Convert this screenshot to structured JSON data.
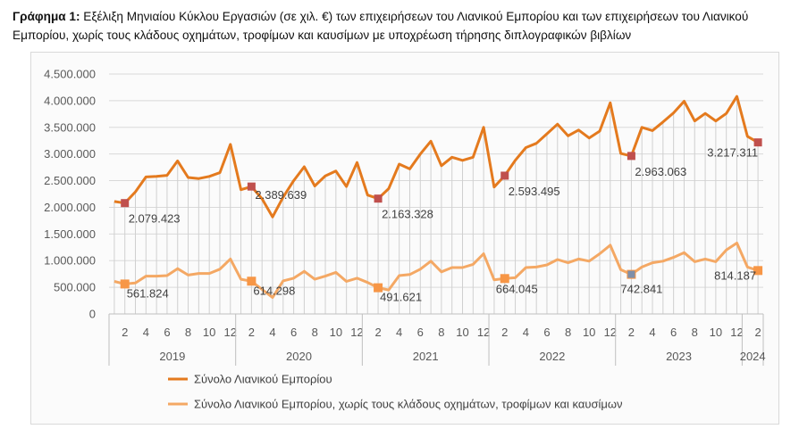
{
  "title": {
    "bold": "Γράφημα 1:",
    "text": " Εξέλιξη Μηνιαίου Κύκλου Εργασιών (σε χιλ. €) των επιχειρήσεων του Λιανικού Εμπορίου και των επιχειρήσεων του Λιανικού Εμπορίου, χωρίς τους κλάδους οχημάτων, τροφίμων και καυσίμων με υποχρέωση τήρησης διπλογραφικών βιβλίων"
  },
  "chart_data": {
    "type": "line",
    "ylim": [
      0,
      4500000
    ],
    "yticks": [
      0,
      500000,
      1000000,
      1500000,
      2000000,
      2500000,
      3000000,
      3500000,
      4000000,
      4500000
    ],
    "ytick_labels": [
      "0",
      "500.000",
      "1.000.000",
      "1.500.000",
      "2.000.000",
      "2.500.000",
      "3.000.000",
      "3.500.000",
      "4.000.000",
      "4.500.000"
    ],
    "month_tick_labels": [
      "2",
      "4",
      "6",
      "8",
      "10",
      "12"
    ],
    "last_year_month_labels": [
      "2"
    ],
    "years": [
      "2019",
      "2020",
      "2021",
      "2022",
      "2023",
      "2024"
    ],
    "x_periods": "monthly, January 2019 – February 2024",
    "grid": "horizontal",
    "legend_position": "bottom-left",
    "colors": {
      "total": "#e47a1e",
      "excl": "#f4a864",
      "marker_total": "#c0504d",
      "marker_excl": "#f79646",
      "marker_excl_2023": "#7f8fa9",
      "grid": "#d9d9d9",
      "dropline": "#d0d0d0"
    },
    "series": [
      {
        "name": "Σύνολο Λιανικού Εμπορίου",
        "values": [
          2110000,
          2079423,
          2290000,
          2570000,
          2580000,
          2600000,
          2870000,
          2560000,
          2540000,
          2580000,
          2650000,
          3180000,
          2330000,
          2389639,
          2160000,
          1820000,
          2190000,
          2500000,
          2760000,
          2400000,
          2590000,
          2680000,
          2390000,
          2840000,
          2230000,
          2163328,
          2350000,
          2810000,
          2720000,
          3000000,
          3240000,
          2780000,
          2940000,
          2880000,
          2940000,
          3500000,
          2380000,
          2593495,
          2880000,
          3120000,
          3200000,
          3380000,
          3560000,
          3340000,
          3450000,
          3300000,
          3430000,
          3960000,
          3010000,
          2963063,
          3500000,
          3440000,
          3600000,
          3770000,
          3990000,
          3620000,
          3760000,
          3620000,
          3760000,
          4080000,
          3330000,
          3217311
        ],
        "labels": [
          {
            "index": 1,
            "text": "2.079.423"
          },
          {
            "index": 13,
            "text": "2.389.639"
          },
          {
            "index": 25,
            "text": "2.163.328"
          },
          {
            "index": 37,
            "text": "2.593.495"
          },
          {
            "index": 49,
            "text": "2.963.063"
          },
          {
            "index": 61,
            "text": "3.217.311"
          }
        ]
      },
      {
        "name": "Σύνολο Λιανικού Εμπορίου, χωρίς τους κλάδους οχημάτων, τροφίμων και καυσίμων",
        "values": [
          610000,
          561824,
          580000,
          710000,
          710000,
          720000,
          850000,
          730000,
          760000,
          760000,
          840000,
          1030000,
          650000,
          614298,
          460000,
          310000,
          620000,
          670000,
          800000,
          650000,
          710000,
          780000,
          610000,
          670000,
          590000,
          491621,
          450000,
          720000,
          740000,
          840000,
          990000,
          790000,
          870000,
          870000,
          930000,
          1130000,
          640000,
          664045,
          680000,
          870000,
          880000,
          920000,
          1020000,
          960000,
          1030000,
          990000,
          1130000,
          1290000,
          830000,
          742841,
          880000,
          960000,
          990000,
          1060000,
          1150000,
          980000,
          1030000,
          980000,
          1200000,
          1330000,
          880000,
          814187
        ],
        "labels": [
          {
            "index": 1,
            "text": "561.824"
          },
          {
            "index": 13,
            "text": "614.298"
          },
          {
            "index": 25,
            "text": "491.621"
          },
          {
            "index": 37,
            "text": "664.045"
          },
          {
            "index": 49,
            "text": "742.841"
          },
          {
            "index": 61,
            "text": "814.187"
          }
        ]
      }
    ]
  }
}
